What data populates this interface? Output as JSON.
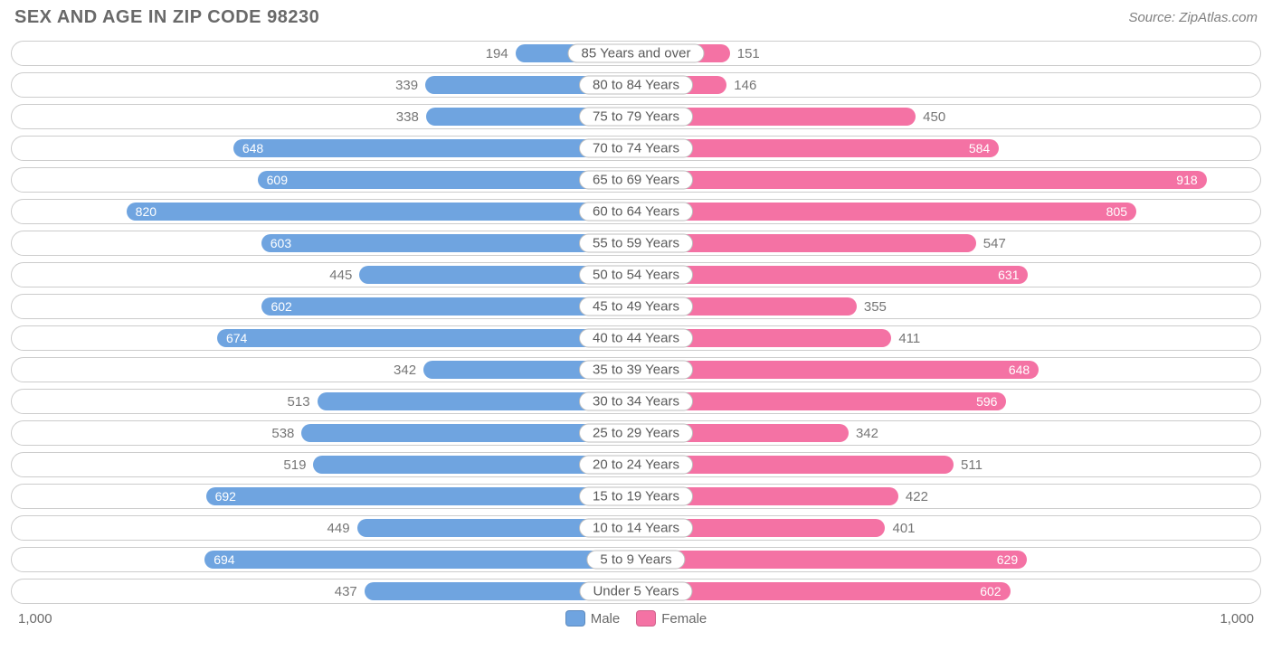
{
  "title": "SEX AND AGE IN ZIP CODE 98230",
  "source": "Source: ZipAtlas.com",
  "chart": {
    "type": "population-pyramid",
    "male_color": "#6fa4e0",
    "female_color": "#f472a4",
    "male_label_color": "#6fa4e0",
    "female_label_color": "#f472a4",
    "outline_color": "#cccccc",
    "text_color": "#6a6a6a",
    "background_color": "#ffffff",
    "axis_max": 1000,
    "axis_label_left": "1,000",
    "axis_label_right": "1,000",
    "value_inside_threshold": 560,
    "legend": [
      {
        "label": "Male",
        "color": "#6fa4e0"
      },
      {
        "label": "Female",
        "color": "#f472a4"
      }
    ],
    "rows": [
      {
        "age": "85 Years and over",
        "male": 194,
        "female": 151
      },
      {
        "age": "80 to 84 Years",
        "male": 339,
        "female": 146
      },
      {
        "age": "75 to 79 Years",
        "male": 338,
        "female": 450
      },
      {
        "age": "70 to 74 Years",
        "male": 648,
        "female": 584
      },
      {
        "age": "65 to 69 Years",
        "male": 609,
        "female": 918
      },
      {
        "age": "60 to 64 Years",
        "male": 820,
        "female": 805
      },
      {
        "age": "55 to 59 Years",
        "male": 603,
        "female": 547
      },
      {
        "age": "50 to 54 Years",
        "male": 445,
        "female": 631
      },
      {
        "age": "45 to 49 Years",
        "male": 602,
        "female": 355
      },
      {
        "age": "40 to 44 Years",
        "male": 674,
        "female": 411
      },
      {
        "age": "35 to 39 Years",
        "male": 342,
        "female": 648
      },
      {
        "age": "30 to 34 Years",
        "male": 513,
        "female": 596
      },
      {
        "age": "25 to 29 Years",
        "male": 538,
        "female": 342
      },
      {
        "age": "20 to 24 Years",
        "male": 519,
        "female": 511
      },
      {
        "age": "15 to 19 Years",
        "male": 692,
        "female": 422
      },
      {
        "age": "10 to 14 Years",
        "male": 449,
        "female": 401
      },
      {
        "age": "5 to 9 Years",
        "male": 694,
        "female": 629
      },
      {
        "age": "Under 5 Years",
        "male": 437,
        "female": 602
      }
    ]
  }
}
